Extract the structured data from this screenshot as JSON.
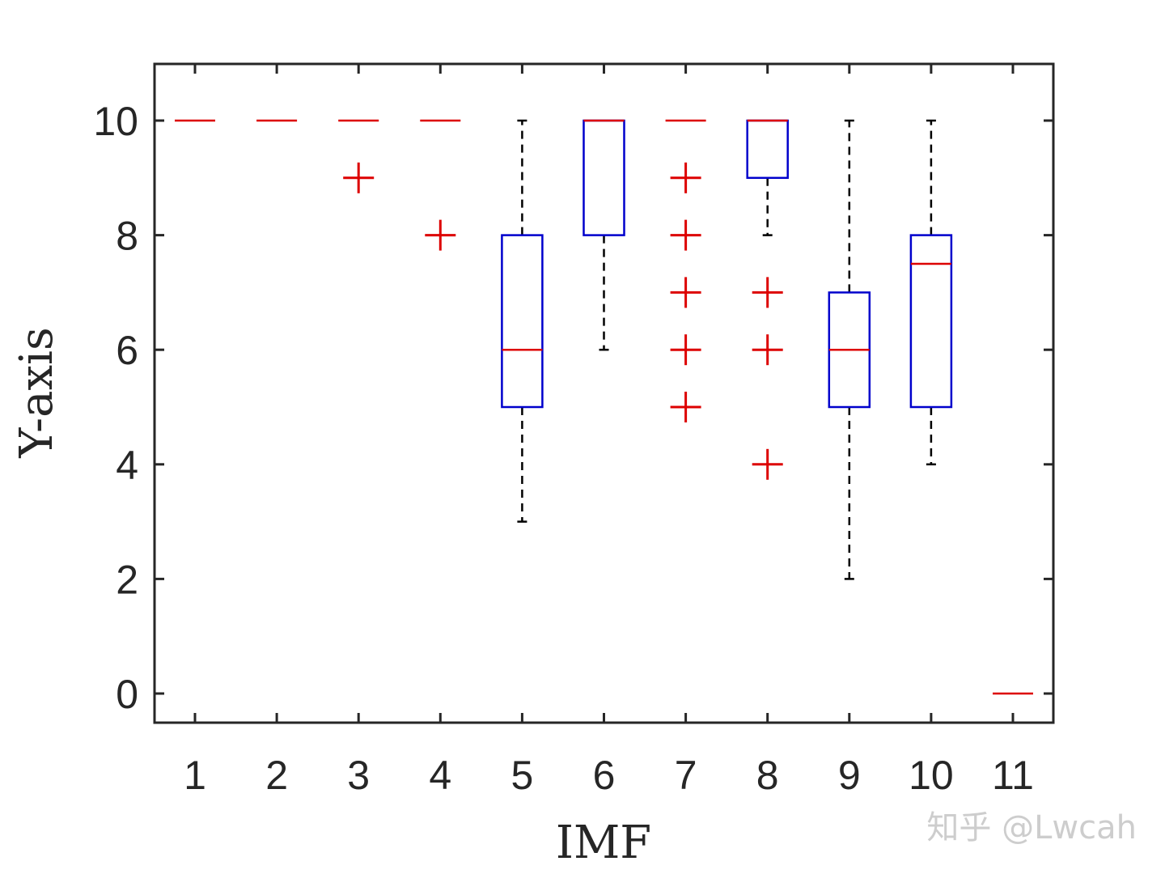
{
  "chart_data": {
    "type": "box",
    "xlabel": "IMF",
    "ylabel": "Y-axis",
    "categories": [
      "1",
      "2",
      "3",
      "4",
      "5",
      "6",
      "7",
      "8",
      "9",
      "10",
      "11"
    ],
    "yticks": [
      "0",
      "2",
      "4",
      "6",
      "8",
      "10"
    ],
    "ylim": [
      -0.5,
      11
    ],
    "grid": false,
    "boxes": [
      {
        "category": "1",
        "q1": 10,
        "median": 10,
        "q3": 10,
        "whisker_low": 10,
        "whisker_high": 10,
        "outliers": []
      },
      {
        "category": "2",
        "q1": 10,
        "median": 10,
        "q3": 10,
        "whisker_low": 10,
        "whisker_high": 10,
        "outliers": []
      },
      {
        "category": "3",
        "q1": 10,
        "median": 10,
        "q3": 10,
        "whisker_low": 10,
        "whisker_high": 10,
        "outliers": [
          9
        ]
      },
      {
        "category": "4",
        "q1": 10,
        "median": 10,
        "q3": 10,
        "whisker_low": 10,
        "whisker_high": 10,
        "outliers": [
          8
        ]
      },
      {
        "category": "5",
        "q1": 5,
        "median": 6,
        "q3": 8,
        "whisker_low": 3,
        "whisker_high": 10,
        "outliers": []
      },
      {
        "category": "6",
        "q1": 8,
        "median": 10,
        "q3": 10,
        "whisker_low": 6,
        "whisker_high": 10,
        "outliers": []
      },
      {
        "category": "7",
        "q1": 10,
        "median": 10,
        "q3": 10,
        "whisker_low": 10,
        "whisker_high": 10,
        "outliers": [
          9,
          8,
          7,
          6,
          5
        ]
      },
      {
        "category": "8",
        "q1": 9,
        "median": 10,
        "q3": 10,
        "whisker_low": 8,
        "whisker_high": 10,
        "outliers": [
          7,
          6,
          4
        ]
      },
      {
        "category": "9",
        "q1": 5,
        "median": 6,
        "q3": 7,
        "whisker_low": 2,
        "whisker_high": 10,
        "outliers": []
      },
      {
        "category": "10",
        "q1": 5,
        "median": 7.5,
        "q3": 8,
        "whisker_low": 4,
        "whisker_high": 10,
        "outliers": []
      },
      {
        "category": "11",
        "q1": 0,
        "median": 0,
        "q3": 0,
        "whisker_low": 0,
        "whisker_high": 0,
        "outliers": []
      }
    ],
    "colors": {
      "box": "#0000cc",
      "median": "#dd0000",
      "outlier": "#dd0000",
      "whisker": "#000000",
      "axis": "#262626"
    }
  },
  "watermark": "知乎 @Lwcah"
}
